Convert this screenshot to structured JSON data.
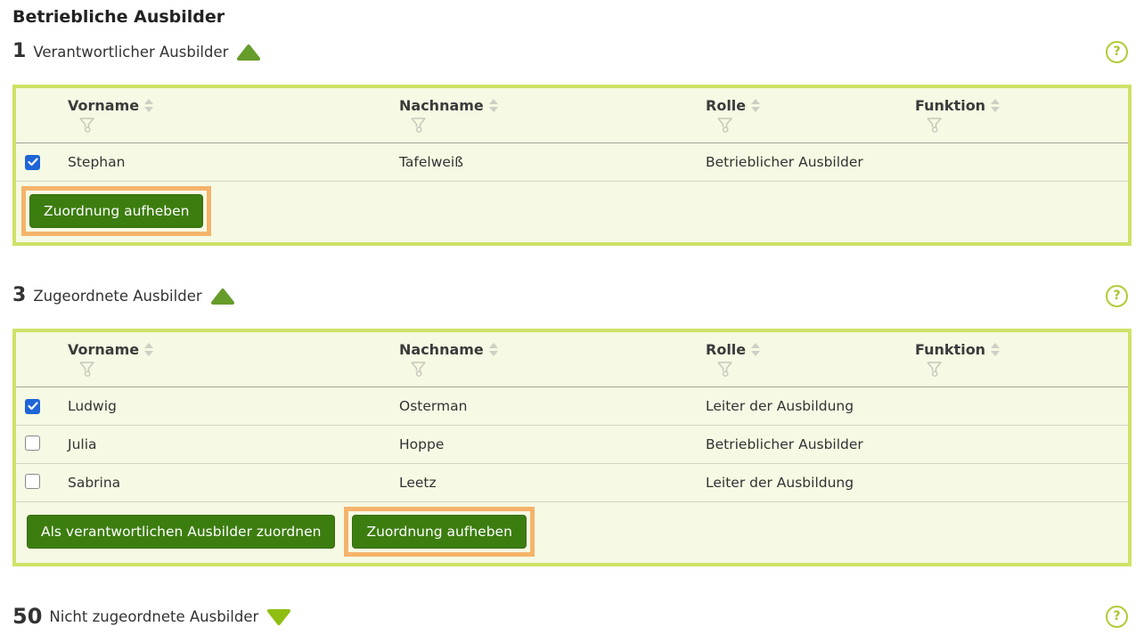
{
  "page_title": "Betriebliche Ausbilder",
  "colors": {
    "panel_border": "#cfe167",
    "panel_bg": "#f6f9e3",
    "button_bg": "#3c7d10",
    "highlight_border": "#f5b36b",
    "help_icon_green": "#b2cb35",
    "triangle_expanded_green": "#669c2b",
    "triangle_collapsed_green": "#8fbe12",
    "checkbox_checked_blue": "#1f65d8"
  },
  "table_columns": [
    "Vorname",
    "Nachname",
    "Rolle",
    "Funktion"
  ],
  "icons": {
    "help": "?",
    "collapse_expanded": "triangle-up-icon",
    "collapse_collapsed": "triangle-down-icon",
    "sort": "sort-arrows-icon",
    "filter": "filter-funnel-icon"
  },
  "sections": [
    {
      "count": "1",
      "label": "Verantwortlicher Ausbilder",
      "state": "expanded",
      "help_label": "?",
      "rows": [
        {
          "checked": true,
          "cells": [
            "Stephan",
            "Tafelweiß",
            "Betrieblicher Ausbilder",
            ""
          ]
        }
      ],
      "buttons": [
        {
          "label": "Zuordnung aufheben",
          "highlighted": true
        }
      ]
    },
    {
      "count": "3",
      "label": "Zugeordnete Ausbilder",
      "state": "expanded",
      "help_label": "?",
      "rows": [
        {
          "checked": true,
          "cells": [
            "Ludwig",
            "Osterman",
            "Leiter der Ausbildung",
            ""
          ]
        },
        {
          "checked": false,
          "cells": [
            "Julia",
            "Hoppe",
            "Betrieblicher Ausbilder",
            ""
          ]
        },
        {
          "checked": false,
          "cells": [
            "Sabrina",
            "Leetz",
            "Leiter der Ausbildung",
            ""
          ]
        }
      ],
      "buttons": [
        {
          "label": "Als verantwortlichen Ausbilder zuordnen",
          "highlighted": false
        },
        {
          "label": "Zuordnung aufheben",
          "highlighted": true
        }
      ]
    },
    {
      "count": "50",
      "label": "Nicht zugeordnete Ausbilder",
      "state": "collapsed",
      "help_label": "?",
      "rows": [],
      "buttons": []
    }
  ]
}
